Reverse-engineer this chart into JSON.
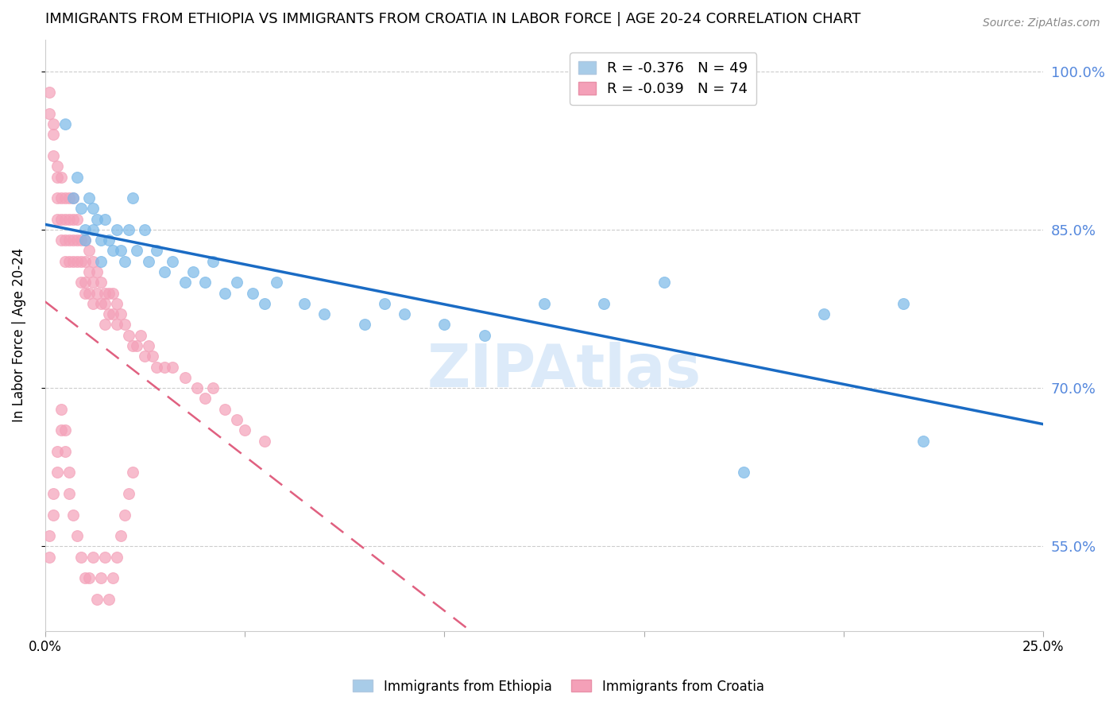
{
  "title": "IMMIGRANTS FROM ETHIOPIA VS IMMIGRANTS FROM CROATIA IN LABOR FORCE | AGE 20-24 CORRELATION CHART",
  "source": "Source: ZipAtlas.com",
  "ylabel": "In Labor Force | Age 20-24",
  "xlim": [
    0.0,
    0.25
  ],
  "ylim": [
    0.47,
    1.03
  ],
  "yticks": [
    0.55,
    0.7,
    0.85,
    1.0
  ],
  "ytick_labels": [
    "55.0%",
    "70.0%",
    "85.0%",
    "100.0%"
  ],
  "xticks": [
    0.0,
    0.05,
    0.1,
    0.15,
    0.2,
    0.25
  ],
  "xtick_labels": [
    "0.0%",
    "",
    "",
    "",
    "",
    "25.0%"
  ],
  "ethiopia": {
    "name": "Immigrants from Ethiopia",
    "color": "#7ab8e8",
    "R": -0.376,
    "N": 49,
    "x": [
      0.005,
      0.007,
      0.008,
      0.009,
      0.01,
      0.01,
      0.011,
      0.012,
      0.012,
      0.013,
      0.014,
      0.014,
      0.015,
      0.016,
      0.017,
      0.018,
      0.019,
      0.02,
      0.021,
      0.022,
      0.023,
      0.025,
      0.026,
      0.028,
      0.03,
      0.032,
      0.035,
      0.037,
      0.04,
      0.042,
      0.045,
      0.048,
      0.052,
      0.055,
      0.058,
      0.065,
      0.07,
      0.08,
      0.085,
      0.09,
      0.1,
      0.11,
      0.125,
      0.14,
      0.155,
      0.175,
      0.195,
      0.215,
      0.22
    ],
    "y": [
      0.95,
      0.88,
      0.9,
      0.87,
      0.85,
      0.84,
      0.88,
      0.87,
      0.85,
      0.86,
      0.84,
      0.82,
      0.86,
      0.84,
      0.83,
      0.85,
      0.83,
      0.82,
      0.85,
      0.88,
      0.83,
      0.85,
      0.82,
      0.83,
      0.81,
      0.82,
      0.8,
      0.81,
      0.8,
      0.82,
      0.79,
      0.8,
      0.79,
      0.78,
      0.8,
      0.78,
      0.77,
      0.76,
      0.78,
      0.77,
      0.76,
      0.75,
      0.78,
      0.78,
      0.8,
      0.62,
      0.77,
      0.78,
      0.65
    ]
  },
  "croatia": {
    "name": "Immigrants from Croatia",
    "color": "#f4a0b8",
    "R": -0.039,
    "N": 74,
    "x": [
      0.001,
      0.001,
      0.002,
      0.002,
      0.002,
      0.003,
      0.003,
      0.003,
      0.003,
      0.004,
      0.004,
      0.004,
      0.004,
      0.005,
      0.005,
      0.005,
      0.005,
      0.006,
      0.006,
      0.006,
      0.006,
      0.007,
      0.007,
      0.007,
      0.007,
      0.008,
      0.008,
      0.008,
      0.009,
      0.009,
      0.009,
      0.01,
      0.01,
      0.01,
      0.01,
      0.011,
      0.011,
      0.011,
      0.012,
      0.012,
      0.012,
      0.013,
      0.013,
      0.014,
      0.014,
      0.015,
      0.015,
      0.015,
      0.016,
      0.016,
      0.017,
      0.017,
      0.018,
      0.018,
      0.019,
      0.02,
      0.021,
      0.022,
      0.023,
      0.024,
      0.025,
      0.026,
      0.027,
      0.028,
      0.03,
      0.032,
      0.035,
      0.038,
      0.04,
      0.042,
      0.045,
      0.048,
      0.05,
      0.055
    ],
    "y": [
      0.98,
      0.96,
      0.95,
      0.94,
      0.92,
      0.91,
      0.9,
      0.88,
      0.86,
      0.9,
      0.88,
      0.86,
      0.84,
      0.88,
      0.86,
      0.84,
      0.82,
      0.88,
      0.86,
      0.84,
      0.82,
      0.88,
      0.86,
      0.84,
      0.82,
      0.86,
      0.84,
      0.82,
      0.84,
      0.82,
      0.8,
      0.84,
      0.82,
      0.8,
      0.79,
      0.83,
      0.81,
      0.79,
      0.82,
      0.8,
      0.78,
      0.81,
      0.79,
      0.8,
      0.78,
      0.79,
      0.78,
      0.76,
      0.79,
      0.77,
      0.79,
      0.77,
      0.78,
      0.76,
      0.77,
      0.76,
      0.75,
      0.74,
      0.74,
      0.75,
      0.73,
      0.74,
      0.73,
      0.72,
      0.72,
      0.72,
      0.71,
      0.7,
      0.69,
      0.7,
      0.68,
      0.67,
      0.66,
      0.65
    ]
  },
  "croatia_low": {
    "x": [
      0.001,
      0.001,
      0.002,
      0.002,
      0.003,
      0.003,
      0.004,
      0.004,
      0.005,
      0.005,
      0.006,
      0.006,
      0.007,
      0.008,
      0.009,
      0.01,
      0.011,
      0.012,
      0.013,
      0.014,
      0.015,
      0.016,
      0.017,
      0.018,
      0.019,
      0.02,
      0.021,
      0.022
    ],
    "y": [
      0.54,
      0.56,
      0.6,
      0.58,
      0.62,
      0.64,
      0.66,
      0.68,
      0.66,
      0.64,
      0.62,
      0.6,
      0.58,
      0.56,
      0.54,
      0.52,
      0.52,
      0.54,
      0.5,
      0.52,
      0.54,
      0.5,
      0.52,
      0.54,
      0.56,
      0.58,
      0.6,
      0.62
    ]
  },
  "legend_box_color": "#ffffff",
  "blue_line_color": "#1a6bc4",
  "pink_line_color": "#e06080",
  "grid_color": "#cccccc",
  "right_axis_color": "#5588dd",
  "watermark": "ZIPAtlas",
  "watermark_color": "#c5ddf5"
}
